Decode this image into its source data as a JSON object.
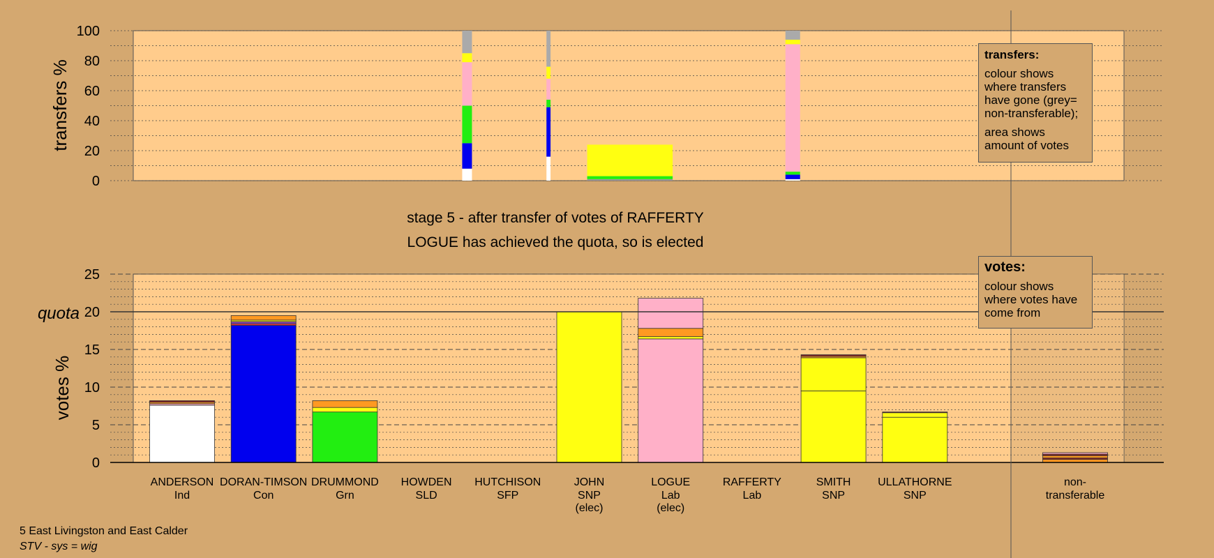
{
  "stage_text": "stage 5 - after transfer of votes of RAFFERTY",
  "elected_text": "LOGUE has achieved the quota, so is elected",
  "footer": {
    "line1": "5 East Livingston and East Calder",
    "line2": "STV - sys = wig"
  },
  "legend_transfers": {
    "title": "transfers:",
    "p1": "colour shows where transfers have gone (grey= non-transferable);",
    "p2": "area shows amount of votes"
  },
  "legend_votes": {
    "title": "votes:",
    "p1": "colour shows where votes have come from"
  },
  "chart_data": [
    {
      "type": "bar",
      "ylabel": "transfers %",
      "ylim": [
        0,
        100
      ],
      "yticks": [
        0,
        20,
        40,
        60,
        80,
        100
      ],
      "note": "stacked transfer bars; x positions in candidate slots (0=ANDERSON ... 9=ULLATHORNE); width in slot units",
      "bars": [
        {
          "x": 3.5,
          "width": 0.12,
          "segments": [
            {
              "color": "#FFFFFF",
              "value": 8
            },
            {
              "color": "#0000EE",
              "value": 17
            },
            {
              "color": "#22EE11",
              "value": 25
            },
            {
              "color": "#FFB0C8",
              "value": 29
            },
            {
              "color": "#FFFF11",
              "value": 6
            },
            {
              "color": "#AAAAAA",
              "value": 15
            }
          ]
        },
        {
          "x": 4.5,
          "width": 0.05,
          "segments": [
            {
              "color": "#FFFFFF",
              "value": 16
            },
            {
              "color": "#0000EE",
              "value": 33
            },
            {
              "color": "#22EE11",
              "value": 5
            },
            {
              "color": "#FFB0C8",
              "value": 14
            },
            {
              "color": "#FFFF11",
              "value": 8
            },
            {
              "color": "#AAAAAA",
              "value": 24
            }
          ]
        },
        {
          "x": 5.5,
          "width": 1.05,
          "segments": [
            {
              "color": "#999999",
              "value": 1
            },
            {
              "color": "#22EE11",
              "value": 2
            },
            {
              "color": "#FFFF11",
              "value": 21
            }
          ]
        },
        {
          "x": 7.5,
          "width": 0.18,
          "segments": [
            {
              "color": "#FFFFFF",
              "value": 1
            },
            {
              "color": "#0000EE",
              "value": 3
            },
            {
              "color": "#22EE11",
              "value": 2
            },
            {
              "color": "#FFB0C8",
              "value": 85
            },
            {
              "color": "#FFFF11",
              "value": 3
            },
            {
              "color": "#AAAAAA",
              "value": 6
            }
          ]
        }
      ]
    },
    {
      "type": "bar",
      "ylabel": "votes %",
      "ylim": [
        0,
        25
      ],
      "yticks": [
        0,
        5,
        10,
        15,
        20,
        25
      ],
      "quota": 20,
      "quota_label": "quota",
      "candidates": [
        {
          "name": "ANDERSON",
          "party": "Ind",
          "status": "",
          "segments": [
            {
              "color": "#FFFFFF",
              "value": 7.6
            },
            {
              "color": "#FFB0C8",
              "value": 0.2
            },
            {
              "color": "#FF9922",
              "value": 0.2
            },
            {
              "color": "#882222",
              "value": 0.2
            }
          ]
        },
        {
          "name": "DORAN-TIMSON",
          "party": "Con",
          "status": "",
          "segments": [
            {
              "color": "#0000EE",
              "value": 18.2
            },
            {
              "color": "#FF3344",
              "value": 0.2
            },
            {
              "color": "#8844AA",
              "value": 0.3
            },
            {
              "color": "#FFFF11",
              "value": 0.2
            },
            {
              "color": "#FF9922",
              "value": 0.6
            }
          ]
        },
        {
          "name": "DRUMMOND",
          "party": "Grn",
          "status": "",
          "segments": [
            {
              "color": "#22EE11",
              "value": 6.7
            },
            {
              "color": "#FFFF11",
              "value": 0.6
            },
            {
              "color": "#FF9922",
              "value": 0.9
            }
          ]
        },
        {
          "name": "HOWDEN",
          "party": "SLD",
          "status": "",
          "segments": []
        },
        {
          "name": "HUTCHISON",
          "party": "SFP",
          "status": "",
          "segments": []
        },
        {
          "name": "JOHN",
          "party": "SNP",
          "status": "(elec)",
          "segments": [
            {
              "color": "#FFFF11",
              "value": 20.0
            }
          ]
        },
        {
          "name": "LOGUE",
          "party": "Lab",
          "status": "(elec)",
          "segments": [
            {
              "color": "#FFB0C8",
              "value": 16.4
            },
            {
              "color": "#FFFF11",
              "value": 0.3
            },
            {
              "color": "#FF9922",
              "value": 1.1
            },
            {
              "color": "#FFB0C8",
              "value": 4.0
            }
          ]
        },
        {
          "name": "RAFFERTY",
          "party": "Lab",
          "status": "",
          "segments": []
        },
        {
          "name": "SMITH",
          "party": "SNP",
          "status": "",
          "segments": [
            {
              "color": "#FFFF11",
              "value": 9.5
            },
            {
              "color": "#FFFF11",
              "value": 4.4
            },
            {
              "color": "#FF9922",
              "value": 0.2
            },
            {
              "color": "#882222",
              "value": 0.2
            }
          ]
        },
        {
          "name": "ULLATHORNE",
          "party": "SNP",
          "status": "",
          "segments": [
            {
              "color": "#FFFF11",
              "value": 6.0
            },
            {
              "color": "#FFFF11",
              "value": 0.6
            },
            {
              "color": "#882222",
              "value": 0.1
            }
          ]
        }
      ],
      "nontransferable": {
        "name": "non-",
        "name2": "transferable",
        "segments": [
          {
            "color": "#FF9922",
            "value": 0.4
          },
          {
            "color": "#882222",
            "value": 0.2
          },
          {
            "color": "#FF9922",
            "value": 0.3
          },
          {
            "color": "#882222",
            "value": 0.2
          },
          {
            "color": "#FFB0C8",
            "value": 0.2
          }
        ]
      }
    }
  ]
}
